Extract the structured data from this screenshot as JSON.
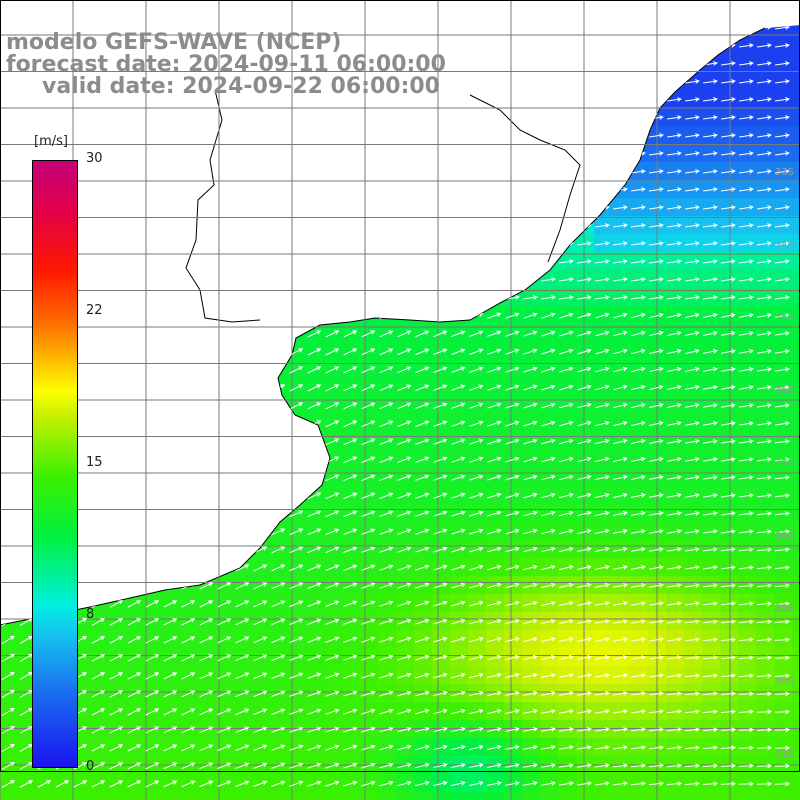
{
  "title": {
    "line1": "modelo GEFS-WAVE (NCEP)",
    "line2": "forecast date: 2024-09-11 06:00:00",
    "line3": "valid date: 2024-09-22 06:00:00"
  },
  "colorbar": {
    "unit": "[m/s]",
    "ticks": [
      "30",
      "22",
      "15",
      "8",
      "0"
    ]
  },
  "lat_labels": [
    "33S",
    "34S",
    "35S",
    "36S",
    "37S",
    "38S",
    "39S",
    "40S",
    "41S"
  ],
  "lon_labels": [
    "",
    "",
    "",
    "",
    "",
    ""
  ],
  "colors": {
    "land": "#ffffff",
    "coast": "#000000",
    "grid": "#7a7a7a",
    "arrow": "#ffffff",
    "title": "#8c8c8c"
  }
}
